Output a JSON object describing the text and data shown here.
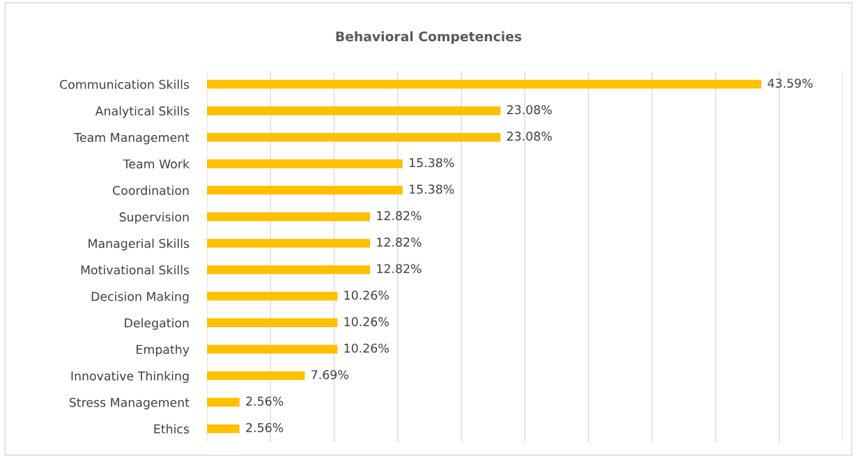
{
  "chart_data": {
    "type": "bar",
    "orientation": "horizontal",
    "title": "Behavioral Competencies",
    "categories": [
      "Communication Skills",
      "Analytical Skills",
      "Team Management",
      "Team Work",
      "Coordination",
      "Supervision",
      "Managerial Skills",
      "Motivational Skills",
      "Decision Making",
      "Delegation",
      "Empathy",
      "Innovative Thinking",
      "Stress Management",
      "Ethics"
    ],
    "values": [
      43.59,
      23.08,
      23.08,
      15.38,
      15.38,
      12.82,
      12.82,
      12.82,
      10.26,
      10.26,
      10.26,
      7.69,
      2.56,
      2.56
    ],
    "value_labels": [
      "43.59%",
      "23.08%",
      "23.08%",
      "15.38%",
      "15.38%",
      "12.82%",
      "12.82%",
      "12.82%",
      "10.26%",
      "10.26%",
      "10.26%",
      "7.69%",
      "2.56%",
      "2.56%"
    ],
    "color": "#ffc000",
    "xlim": [
      0,
      50
    ],
    "xticks": [
      {
        "value": 0,
        "label": null
      },
      {
        "value": 5,
        "label": null
      },
      {
        "value": 10,
        "label": null
      },
      {
        "value": 15,
        "label": null
      },
      {
        "value": 20,
        "label": null
      },
      {
        "value": 25,
        "label": null
      },
      {
        "value": 30,
        "label": null
      },
      {
        "value": 35,
        "label": null
      },
      {
        "value": 40,
        "label": null
      },
      {
        "value": 45,
        "label": null
      },
      {
        "value": 50,
        "label": null
      }
    ],
    "tick_labels": "y",
    "grid": "x",
    "legend": false
  }
}
